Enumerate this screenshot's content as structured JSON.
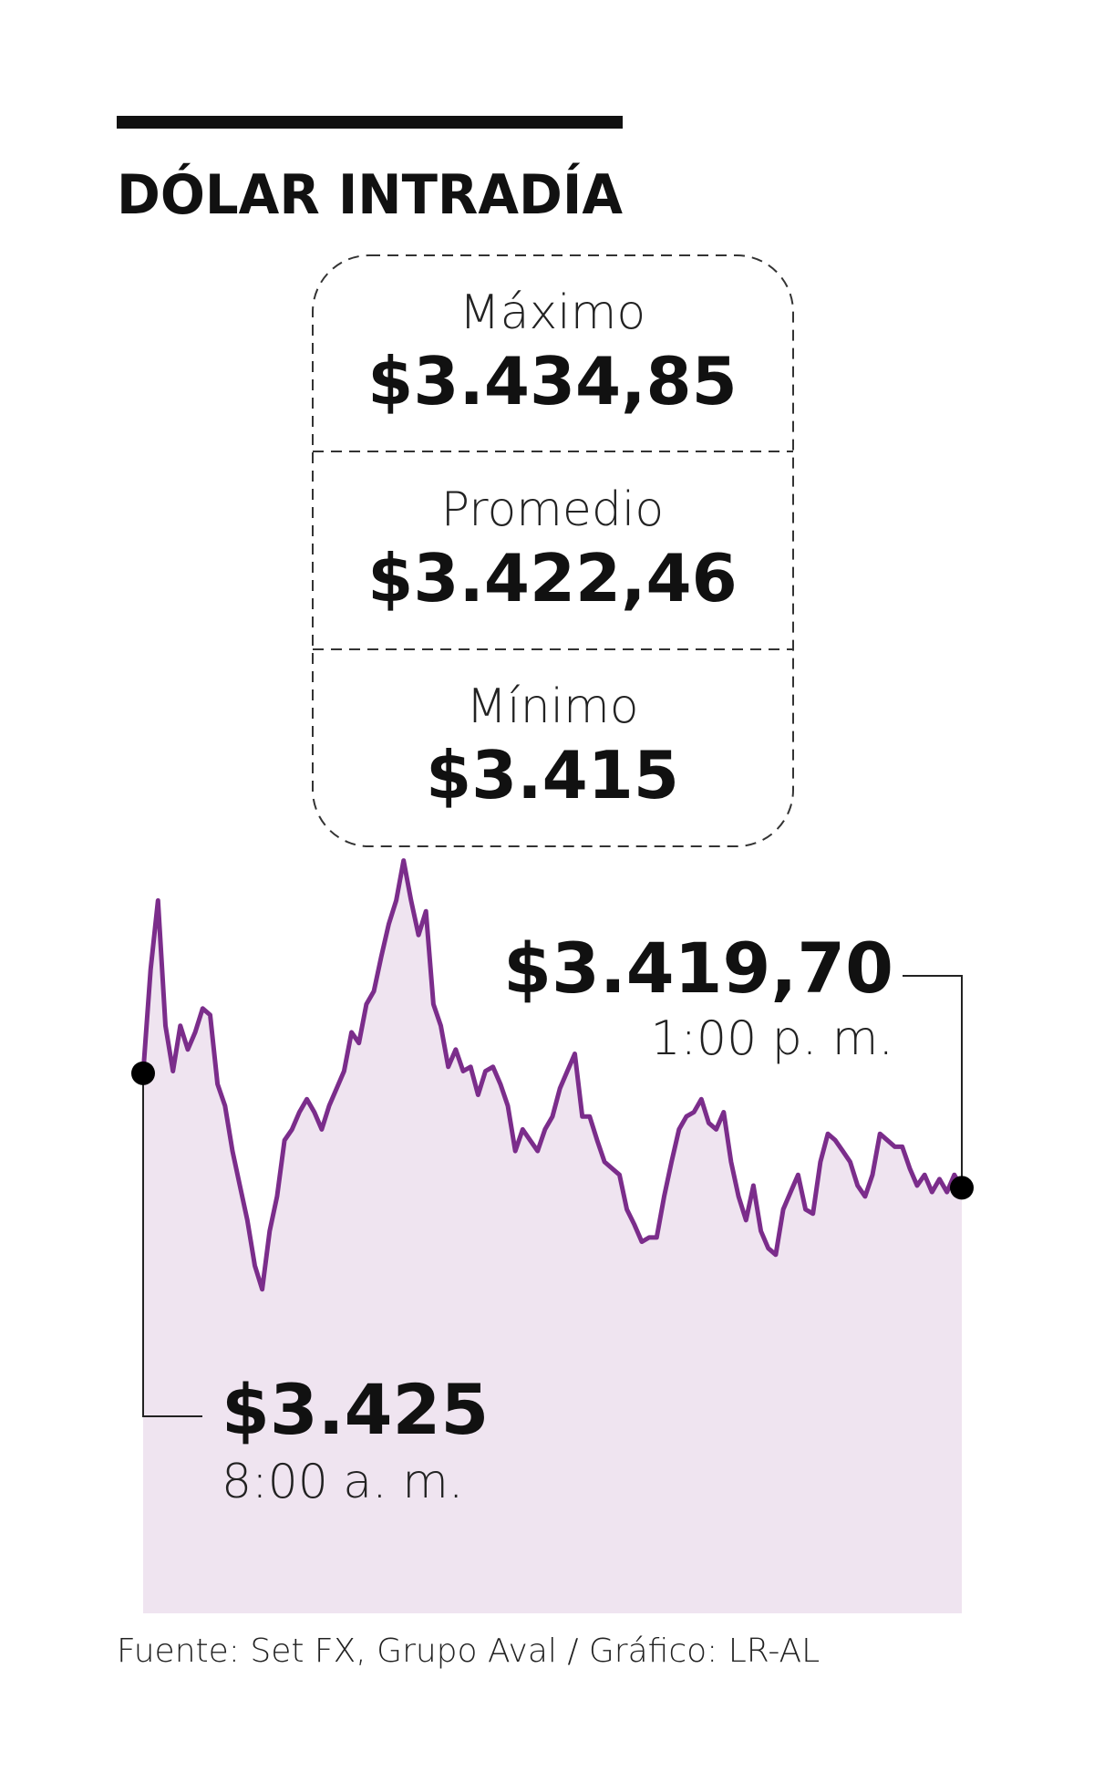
{
  "chart_data": {
    "type": "line",
    "title": "DÓLAR INTRADÍA",
    "summary": [
      {
        "label": "Máximo",
        "text": "$3.434,85"
      },
      {
        "label": "Promedio",
        "text": "$3.422,46"
      },
      {
        "label": "Mínimo",
        "text": "$3.415"
      }
    ],
    "categories": [
      "8:00 a. m.",
      null,
      null,
      null,
      null,
      null,
      null,
      null,
      null,
      null,
      null,
      null,
      null,
      null,
      null,
      null,
      null,
      null,
      null,
      null,
      null,
      null,
      null,
      null,
      null,
      null,
      null,
      null,
      null,
      null,
      null,
      null,
      null,
      null,
      null,
      null,
      null,
      null,
      null,
      null,
      null,
      null,
      null,
      null,
      null,
      null,
      null,
      null,
      null,
      null,
      null,
      null,
      null,
      null,
      null,
      null,
      null,
      null,
      null,
      null,
      null,
      null,
      null,
      null,
      null,
      null,
      null,
      null,
      null,
      null,
      null,
      null,
      null,
      null,
      null,
      null,
      null,
      null,
      null,
      null,
      null,
      null,
      null,
      null,
      null,
      null,
      null,
      null,
      null,
      null,
      null,
      null,
      null,
      null,
      null,
      null,
      null,
      null,
      null,
      null,
      null,
      null,
      null,
      null,
      null,
      null,
      null,
      null,
      null,
      null,
      "1:00 p. m."
    ],
    "values": [
      3425,
      3429.8,
      3433.0,
      3427.2,
      3425.1,
      3427.2,
      3426.1,
      3426.9,
      3428.0,
      3427.7,
      3424.5,
      3423.5,
      3421.4,
      3419.8,
      3418.2,
      3416.1,
      3415,
      3417.7,
      3419.3,
      3421.9,
      3422.4,
      3423.2,
      3423.8,
      3423.2,
      3422.4,
      3423.5,
      3424.3,
      3425.1,
      3426.9,
      3426.4,
      3428.2,
      3428.8,
      3430.4,
      3431.9,
      3433.0,
      3434.85,
      3433.0,
      3431.4,
      3432.5,
      3428.2,
      3427.2,
      3425.3,
      3426.1,
      3425.1,
      3425.3,
      3424.0,
      3425.1,
      3425.3,
      3424.5,
      3423.5,
      3421.4,
      3422.4,
      3421.9,
      3421.4,
      3422.4,
      3423.0,
      3424.3,
      3425.1,
      3425.9,
      3423.0,
      3423.0,
      3421.9,
      3420.9,
      3420.6,
      3420.3,
      3418.7,
      3418.0,
      3417.2,
      3417.4,
      3417.4,
      3419.3,
      3420.9,
      3422.4,
      3423.0,
      3423.2,
      3423.8,
      3422.7,
      3422.4,
      3423.2,
      3420.9,
      3419.3,
      3418.2,
      3419.8,
      3417.7,
      3416.9,
      3416.6,
      3418.7,
      3419.5,
      3420.3,
      3418.7,
      3418.5,
      3420.9,
      3422.2,
      3421.9,
      3421.4,
      3420.9,
      3419.8,
      3419.3,
      3420.3,
      3422.2,
      3421.9,
      3421.6,
      3421.6,
      3420.6,
      3419.8,
      3420.3,
      3419.5,
      3420.1,
      3419.5,
      3420.3,
      3419.7
    ],
    "value_labels": [
      "$3.425",
      null,
      null,
      null,
      null,
      null,
      null,
      null,
      null,
      null,
      null,
      null,
      null,
      null,
      null,
      null,
      null,
      null,
      null,
      null,
      null,
      null,
      null,
      null,
      null,
      null,
      null,
      null,
      null,
      null,
      null,
      null,
      null,
      null,
      null,
      null,
      null,
      null,
      null,
      null,
      null,
      null,
      null,
      null,
      null,
      null,
      null,
      null,
      null,
      null,
      null,
      null,
      null,
      null,
      null,
      null,
      null,
      null,
      null,
      null,
      null,
      null,
      null,
      null,
      null,
      null,
      null,
      null,
      null,
      null,
      null,
      null,
      null,
      null,
      null,
      null,
      null,
      null,
      null,
      null,
      null,
      null,
      null,
      null,
      null,
      null,
      null,
      null,
      null,
      null,
      null,
      null,
      null,
      null,
      null,
      null,
      null,
      null,
      null,
      null,
      null,
      null,
      null,
      null,
      null,
      null,
      null,
      null,
      null,
      null,
      "$3.419,70"
    ],
    "color": "#7b2d8b",
    "fill_color": "#efe4f0",
    "ylim": [
      3400,
      3435
    ],
    "source": "Fuente: Set FX, Grupo Aval / Gráfico: LR-AL"
  }
}
